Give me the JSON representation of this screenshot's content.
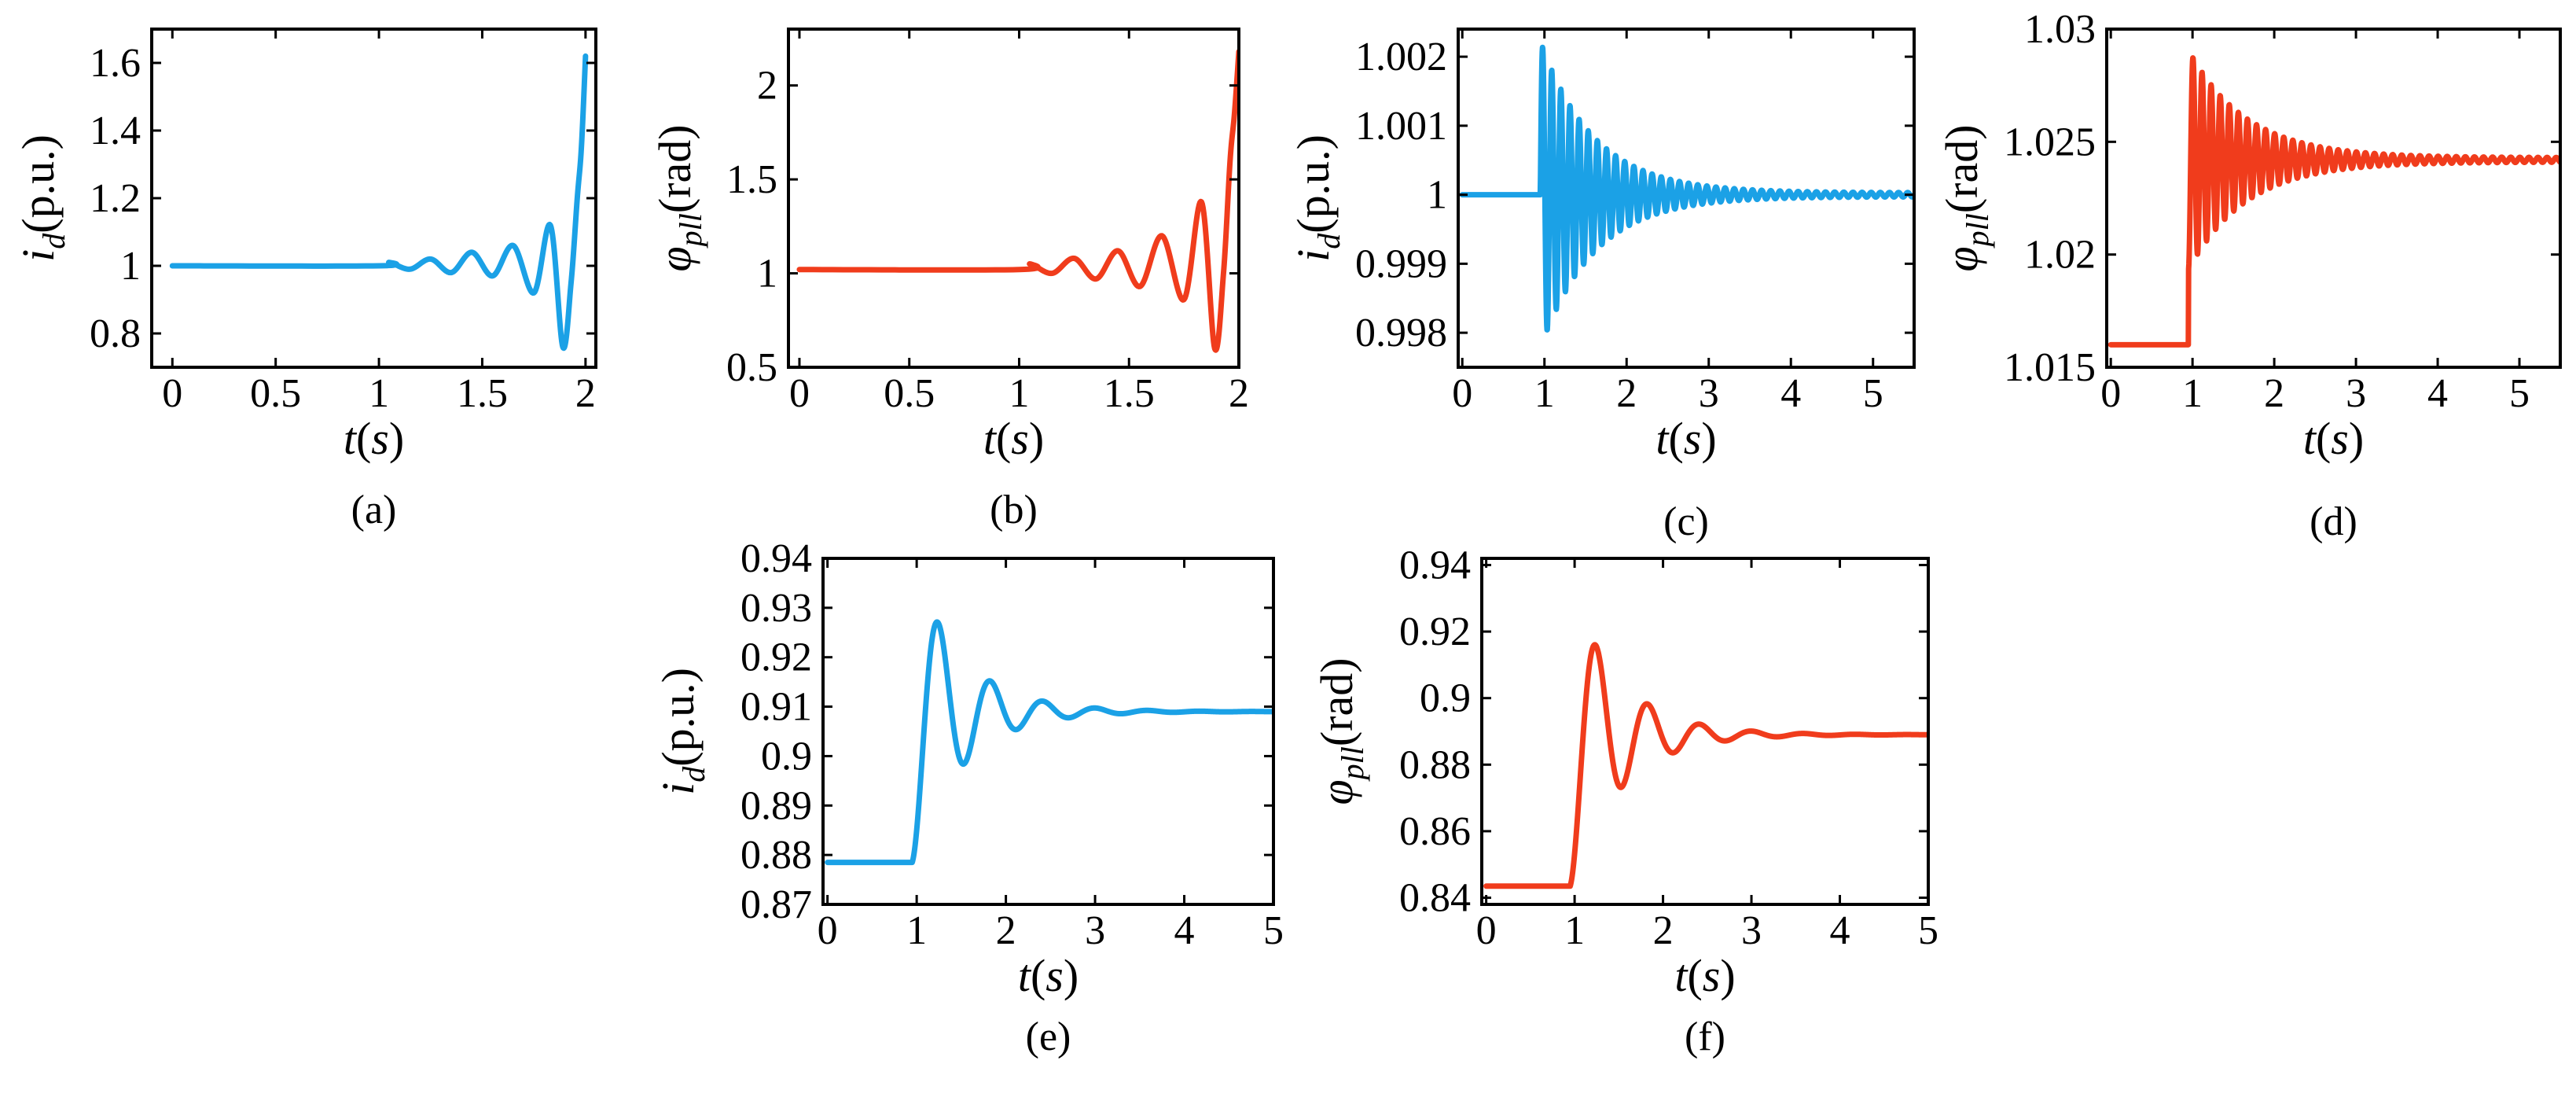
{
  "colors": {
    "blue": "#1ba1e6",
    "red": "#f03c1c"
  },
  "chart_data": [
    {
      "id": "a",
      "type": "line",
      "caption": "(a)",
      "color": "blue",
      "xlabel_var": "t",
      "xlabel_unit": "s",
      "ylabel_sym": "i",
      "ylabel_sub": "d",
      "ylabel_unit": "(p.u.)",
      "xlim": [
        -0.1,
        2.05
      ],
      "ylim": [
        0.7,
        1.7
      ],
      "xticks": [
        0,
        0.5,
        1,
        1.5,
        2
      ],
      "xtick_labels": [
        "0",
        "0.5",
        "1",
        "1.5",
        "2"
      ],
      "yticks": [
        0.8,
        1.0,
        1.2,
        1.4,
        1.6
      ],
      "ytick_labels": [
        "0.8",
        "1",
        "1.2",
        "1.4",
        "1.6"
      ],
      "series": [
        {
          "name": "i_d",
          "x": [
            0,
            1,
            1.05,
            1.15,
            1.25,
            1.35,
            1.45,
            1.55,
            1.65,
            1.75,
            1.83,
            1.89,
            1.93,
            1.96,
            1.98,
            2.0
          ],
          "y": [
            1.0,
            1.0,
            1.01,
            0.99,
            1.02,
            0.98,
            1.04,
            0.97,
            1.06,
            0.92,
            1.12,
            0.76,
            0.95,
            1.2,
            1.35,
            1.62
          ]
        }
      ]
    },
    {
      "id": "b",
      "type": "line",
      "caption": "(b)",
      "color": "red",
      "xlabel_var": "t",
      "xlabel_unit": "s",
      "ylabel_sym": "φ",
      "ylabel_sub": "pll",
      "ylabel_unit": "(rad)",
      "xlim": [
        -0.05,
        2.0
      ],
      "ylim": [
        0.5,
        2.3
      ],
      "xticks": [
        0,
        0.5,
        1,
        1.5,
        2
      ],
      "xtick_labels": [
        "0",
        "0.5",
        "1",
        "1.5",
        "2"
      ],
      "yticks": [
        0.5,
        1.0,
        1.5,
        2.0
      ],
      "ytick_labels": [
        "0.5",
        "1",
        "1.5",
        "2"
      ],
      "series": [
        {
          "name": "phi_pll",
          "x": [
            0,
            1,
            1.05,
            1.15,
            1.25,
            1.35,
            1.45,
            1.55,
            1.65,
            1.75,
            1.83,
            1.89,
            1.93,
            1.96,
            1.98,
            2.0
          ],
          "y": [
            1.02,
            1.02,
            1.05,
            1.0,
            1.08,
            0.97,
            1.12,
            0.93,
            1.2,
            0.86,
            1.38,
            0.6,
            1.0,
            1.6,
            1.85,
            2.18
          ]
        }
      ]
    },
    {
      "id": "c",
      "type": "line",
      "caption": "(c)",
      "color": "blue",
      "xlabel_var": "t",
      "xlabel_unit": "s",
      "ylabel_sym": "i",
      "ylabel_sub": "d",
      "ylabel_unit": "(p.u.)",
      "xlim": [
        -0.05,
        5.5
      ],
      "ylim": [
        0.9975,
        1.0024
      ],
      "xticks": [
        0,
        1,
        2,
        3,
        4,
        5
      ],
      "xtick_labels": [
        "0",
        "1",
        "2",
        "3",
        "4",
        "5"
      ],
      "yticks": [
        0.998,
        0.999,
        1.0,
        1.001,
        1.002
      ],
      "ytick_labels": [
        "0.998",
        "0.999",
        "1",
        "1.001",
        "1.002"
      ],
      "signal": {
        "kind": "damped",
        "t0": 0.95,
        "base": 1.0,
        "amp": 0.0022,
        "freq": 9.0,
        "tau": 0.65,
        "floor": 3e-05
      }
    },
    {
      "id": "d",
      "type": "line",
      "caption": "(d)",
      "color": "red",
      "xlabel_var": "t",
      "xlabel_unit": "s",
      "ylabel_sym": "φ",
      "ylabel_sub": "pll",
      "ylabel_unit": "(rad)",
      "xlim": [
        -0.05,
        5.5
      ],
      "ylim": [
        1.015,
        1.03
      ],
      "xticks": [
        0,
        1,
        2,
        3,
        4,
        5
      ],
      "xtick_labels": [
        "0",
        "1",
        "2",
        "3",
        "4",
        "5"
      ],
      "yticks": [
        1.015,
        1.02,
        1.025,
        1.03
      ],
      "ytick_labels": [
        "1.015",
        "1.02",
        "1.025",
        "1.03"
      ],
      "signal": {
        "kind": "step_damped",
        "t0": 0.95,
        "before": 1.016,
        "after": 1.0242,
        "amp": 0.0048,
        "freq": 9.0,
        "tau": 0.7,
        "floor": 0.0001
      }
    },
    {
      "id": "e",
      "type": "line",
      "caption": "(e)",
      "color": "blue",
      "xlabel_var": "t",
      "xlabel_unit": "s",
      "ylabel_sym": "i",
      "ylabel_sub": "d",
      "ylabel_unit": "(p.u.)",
      "xlim": [
        -0.05,
        5.0
      ],
      "ylim": [
        0.87,
        0.94
      ],
      "xticks": [
        0,
        1,
        2,
        3,
        4,
        5
      ],
      "xtick_labels": [
        "0",
        "1",
        "2",
        "3",
        "4",
        "5"
      ],
      "yticks": [
        0.87,
        0.88,
        0.89,
        0.9,
        0.91,
        0.92,
        0.93,
        0.94
      ],
      "ytick_labels": [
        "0.87",
        "0.88",
        "0.89",
        "0.9",
        "0.91",
        "0.92",
        "0.93",
        "0.94"
      ],
      "signal": {
        "kind": "step_damped",
        "t0": 0.95,
        "before": 0.8785,
        "after": 0.909,
        "amp": 0.0305,
        "freq": 1.7,
        "tau": 0.55,
        "floor": 0.0
      }
    },
    {
      "id": "f",
      "type": "line",
      "caption": "(f)",
      "color": "red",
      "xlabel_var": "t",
      "xlabel_unit": "s",
      "ylabel_sym": "φ",
      "ylabel_sub": "pll",
      "ylabel_unit": "(rad)",
      "xlim": [
        -0.05,
        5.0
      ],
      "ylim": [
        0.838,
        0.942
      ],
      "xticks": [
        0,
        1,
        2,
        3,
        4,
        5
      ],
      "xtick_labels": [
        "0",
        "1",
        "2",
        "3",
        "4",
        "5"
      ],
      "yticks": [
        0.84,
        0.86,
        0.88,
        0.9,
        0.92,
        0.94
      ],
      "ytick_labels": [
        "0.84",
        "0.86",
        "0.88",
        "0.9",
        "0.92",
        "0.94"
      ],
      "signal": {
        "kind": "step_damped",
        "t0": 0.95,
        "before": 0.8435,
        "after": 0.889,
        "amp": 0.0455,
        "freq": 1.7,
        "tau": 0.55,
        "floor": 0.0
      }
    }
  ]
}
